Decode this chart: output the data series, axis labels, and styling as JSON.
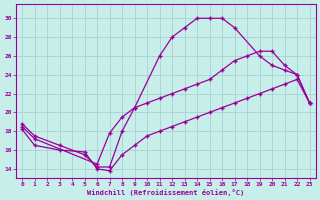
{
  "xlabel": "Windchill (Refroidissement éolien,°C)",
  "xlim": [
    -0.5,
    23.5
  ],
  "ylim": [
    13.0,
    31.5
  ],
  "xticks": [
    0,
    1,
    2,
    3,
    4,
    5,
    6,
    7,
    8,
    9,
    10,
    11,
    12,
    13,
    14,
    15,
    16,
    17,
    18,
    19,
    20,
    21,
    22,
    23
  ],
  "yticks": [
    14,
    16,
    18,
    20,
    22,
    24,
    26,
    28,
    30
  ],
  "background_color": "#c8eeea",
  "grid_color": "#a0cccc",
  "line_color": "#990099",
  "curve1_x": [
    0,
    1,
    3,
    5,
    6,
    7,
    8,
    9,
    11,
    12,
    13,
    14,
    15,
    16,
    17,
    19,
    20,
    21,
    22,
    23
  ],
  "curve1_y": [
    18.8,
    17.5,
    16.5,
    15.5,
    14.2,
    14.2,
    18.0,
    20.5,
    26.0,
    28.0,
    29.0,
    30.0,
    30.0,
    30.0,
    29.0,
    26.0,
    25.0,
    24.5,
    24.0,
    21.0
  ],
  "curve2_x": [
    0,
    1,
    6,
    7,
    8,
    9,
    10,
    11,
    12,
    13,
    14,
    15,
    16,
    17,
    18,
    19,
    20,
    21,
    22,
    23
  ],
  "curve2_y": [
    18.5,
    17.2,
    14.5,
    17.8,
    19.5,
    20.5,
    21.0,
    21.5,
    22.0,
    22.5,
    23.0,
    23.5,
    24.5,
    25.5,
    26.0,
    26.5,
    26.5,
    25.0,
    24.0,
    21.0
  ],
  "curve3_x": [
    0,
    1,
    3,
    5,
    6,
    7,
    8,
    9,
    10,
    11,
    12,
    13,
    14,
    15,
    16,
    17,
    18,
    19,
    20,
    21,
    22,
    23
  ],
  "curve3_y": [
    18.2,
    16.5,
    16.0,
    15.8,
    14.0,
    13.8,
    15.5,
    16.5,
    17.5,
    18.0,
    18.5,
    19.0,
    19.5,
    20.0,
    20.5,
    21.0,
    21.5,
    22.0,
    22.5,
    23.0,
    23.5,
    21.0
  ]
}
